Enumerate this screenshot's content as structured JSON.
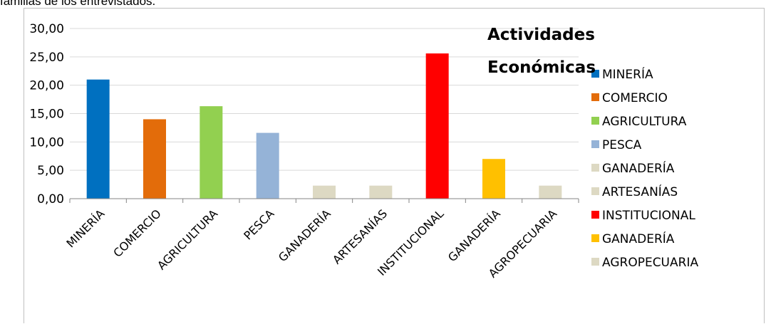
{
  "caption": "familias de los entrevistados.",
  "chart_data": {
    "type": "bar",
    "title": "Actividades Económicas",
    "title_lines": [
      "Actividades",
      "Económicas"
    ],
    "categories": [
      "MINERÍA",
      "COMERCIO",
      "AGRICULTURA",
      "PESCA",
      "GANADERÍA",
      "ARTESANÍAS",
      "INSTITUCIONAL",
      "GANADERÍA",
      "AGROPECUARIA"
    ],
    "values": [
      21.0,
      14.0,
      16.3,
      11.6,
      2.3,
      2.3,
      25.6,
      7.0,
      2.3
    ],
    "colors": [
      "#0070c0",
      "#e36c0a",
      "#92d050",
      "#95b3d7",
      "#ddd9c3",
      "#ddd9c3",
      "#ff0000",
      "#ffc000",
      "#ddd9c3"
    ],
    "ylim": [
      0,
      30
    ],
    "yticks": [
      "0,00",
      "5,00",
      "10,00",
      "15,00",
      "20,00",
      "25,00",
      "30,00"
    ],
    "xlabel": "",
    "ylabel": "",
    "grid": true,
    "legend_position": "right"
  }
}
